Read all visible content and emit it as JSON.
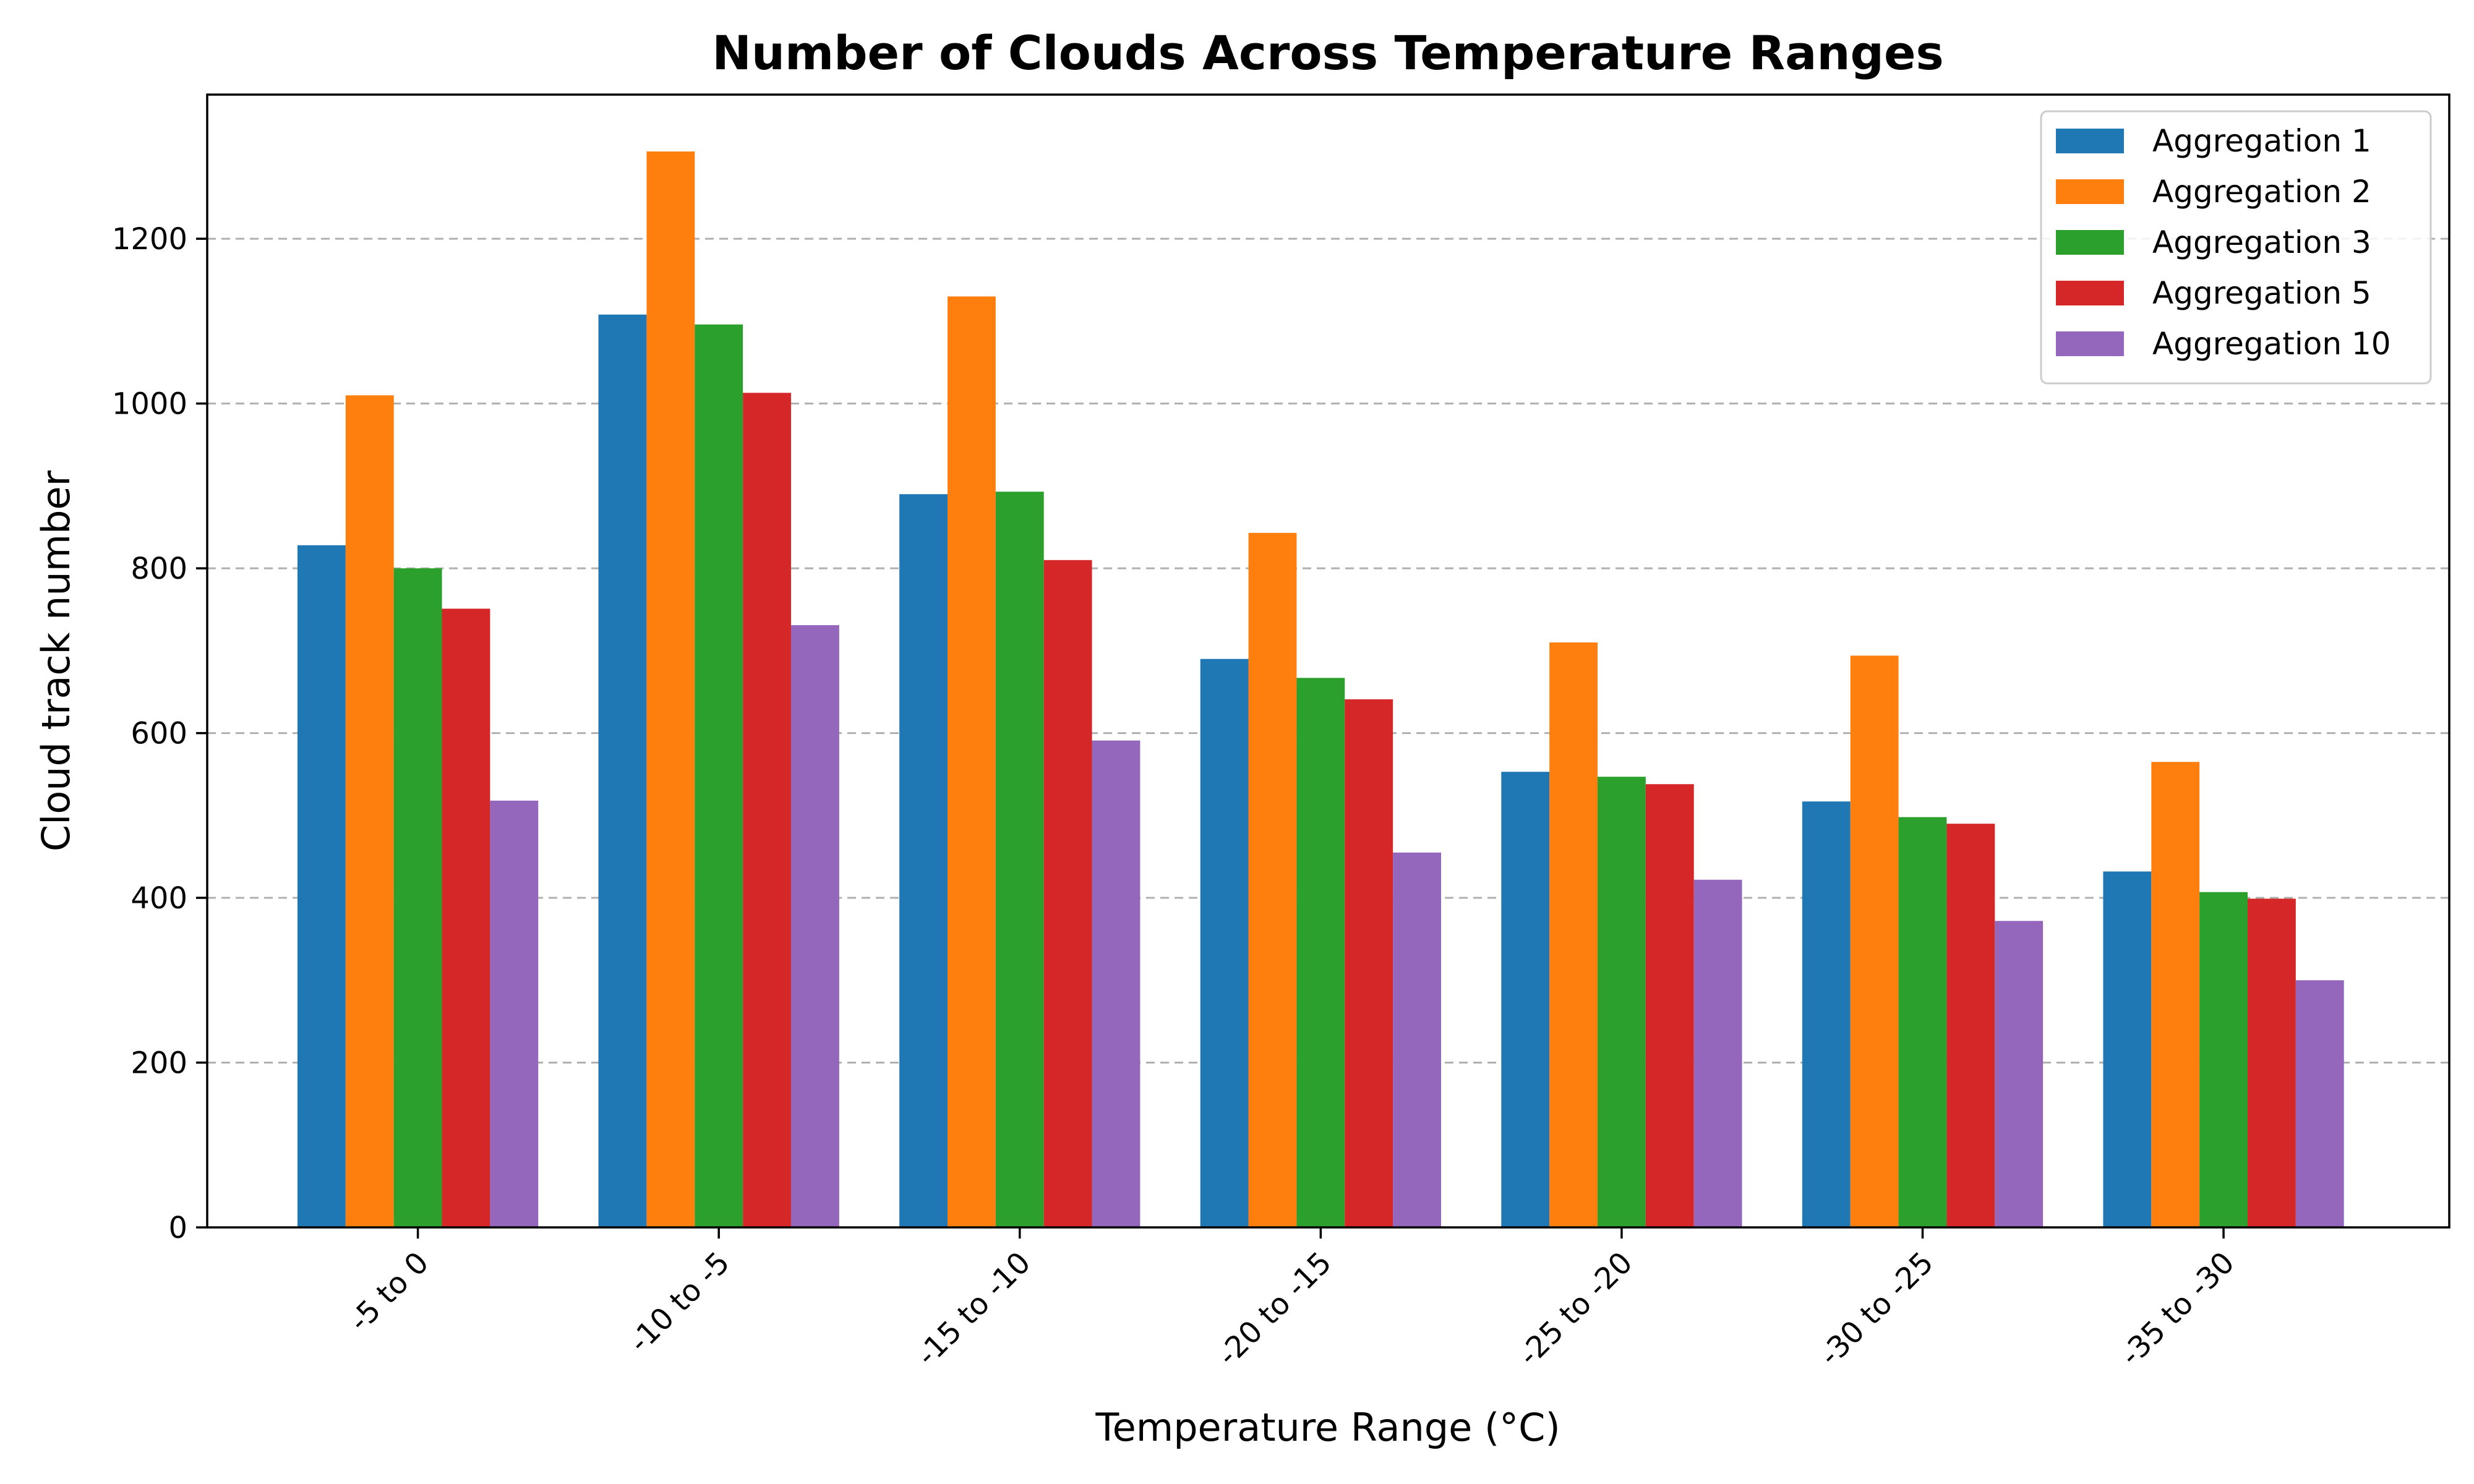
{
  "chart_data": {
    "type": "bar",
    "title": "Number of Clouds Across Temperature Ranges",
    "xlabel": "Temperature Range (°C)",
    "ylabel": "Cloud track number",
    "categories": [
      "-5 to 0",
      "-10 to -5",
      "-15 to -10",
      "-20 to -15",
      "-25 to -20",
      "-30 to -25",
      "-35 to -30"
    ],
    "ylim": [
      0,
      1375
    ],
    "yticks": [
      0,
      200,
      400,
      600,
      800,
      1000,
      1200
    ],
    "grid": "y-dashed",
    "legend_position": "top-right",
    "series": [
      {
        "name": "Aggregation 1",
        "color": "#1f77b4",
        "values": [
          828,
          1108,
          890,
          690,
          553,
          517,
          432
        ]
      },
      {
        "name": "Aggregation 2",
        "color": "#ff7f0e",
        "values": [
          1010,
          1306,
          1130,
          843,
          710,
          694,
          565
        ]
      },
      {
        "name": "Aggregation 3",
        "color": "#2ca02c",
        "values": [
          800,
          1096,
          893,
          667,
          547,
          498,
          407
        ]
      },
      {
        "name": "Aggregation 5",
        "color": "#d62728",
        "values": [
          751,
          1013,
          810,
          641,
          538,
          490,
          399
        ]
      },
      {
        "name": "Aggregation 10",
        "color": "#9467bd",
        "values": [
          518,
          731,
          591,
          455,
          422,
          372,
          300
        ]
      }
    ]
  }
}
